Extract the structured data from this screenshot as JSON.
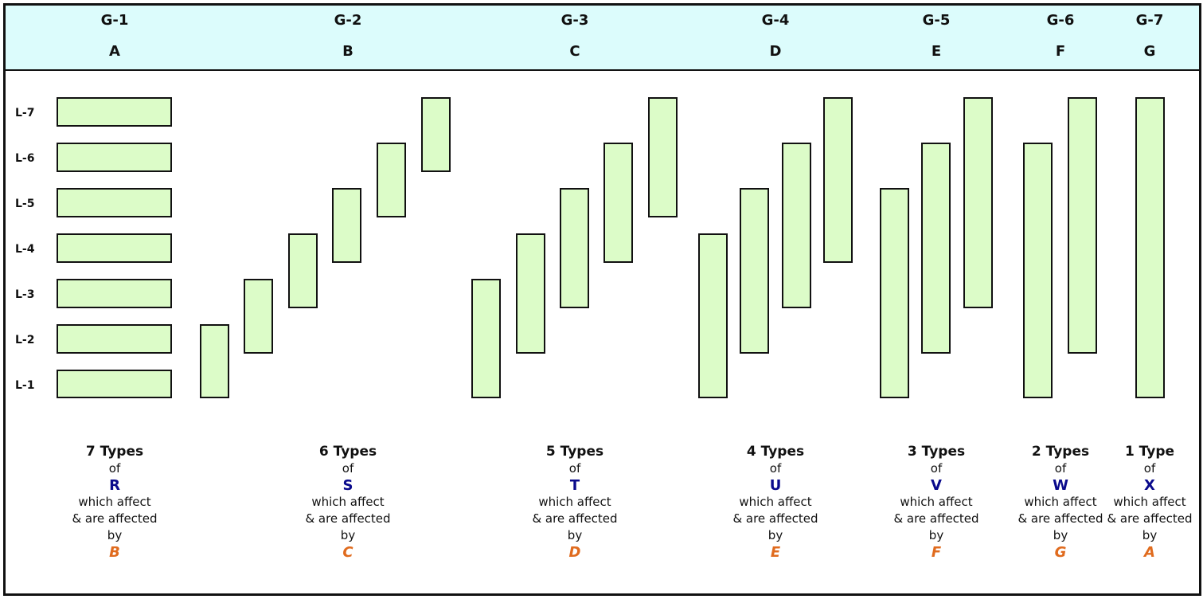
{
  "colors": {
    "header_bg": "#dcfcfc",
    "block_fill": "#dcfcc8",
    "border": "#111111",
    "target_color": "#0a0a8c",
    "source_color": "#e06b1e"
  },
  "groups": [
    {
      "id": "G-1",
      "letter": "A",
      "count_label": "7 Types",
      "of": "of",
      "target": "R",
      "affect": "which affect",
      "affected": "& are affected",
      "by": "by",
      "source": "B"
    },
    {
      "id": "G-2",
      "letter": "B",
      "count_label": "6 Types",
      "of": "of",
      "target": "S",
      "affect": "which affect",
      "affected": "& are affected",
      "by": "by",
      "source": "C"
    },
    {
      "id": "G-3",
      "letter": "C",
      "count_label": "5 Types",
      "of": "of",
      "target": "T",
      "affect": "which affect",
      "affected": "& are affected",
      "by": "by",
      "source": "D"
    },
    {
      "id": "G-4",
      "letter": "D",
      "count_label": "4 Types",
      "of": "of",
      "target": "U",
      "affect": "which affect",
      "affected": "& are affected",
      "by": "by",
      "source": "E"
    },
    {
      "id": "G-5",
      "letter": "E",
      "count_label": "3 Types",
      "of": "of",
      "target": "V",
      "affect": "which affect",
      "affected": "& are affected",
      "by": "by",
      "source": "F"
    },
    {
      "id": "G-6",
      "letter": "F",
      "count_label": "2 Types",
      "of": "of",
      "target": "W",
      "affect": "which affect",
      "affected": "& are affected",
      "by": "by",
      "source": "G"
    },
    {
      "id": "G-7",
      "letter": "G",
      "count_label": "1 Type",
      "of": "of",
      "target": "X",
      "affect": "which affect",
      "affected": "& are affected",
      "by": "by",
      "source": "A"
    }
  ],
  "levels": [
    "L-7",
    "L-6",
    "L-5",
    "L-4",
    "L-3",
    "L-2",
    "L-1"
  ],
  "spans": [
    [
      [
        1,
        1
      ],
      [
        2,
        2
      ],
      [
        3,
        3
      ],
      [
        4,
        4
      ],
      [
        5,
        5
      ],
      [
        6,
        6
      ],
      [
        7,
        7
      ]
    ],
    [
      [
        1,
        2
      ],
      [
        2,
        3
      ],
      [
        3,
        4
      ],
      [
        4,
        5
      ],
      [
        5,
        6
      ],
      [
        6,
        7
      ]
    ],
    [
      [
        1,
        3
      ],
      [
        2,
        4
      ],
      [
        3,
        5
      ],
      [
        4,
        6
      ],
      [
        5,
        7
      ]
    ],
    [
      [
        1,
        4
      ],
      [
        2,
        5
      ],
      [
        3,
        6
      ],
      [
        4,
        7
      ]
    ],
    [
      [
        1,
        5
      ],
      [
        2,
        6
      ],
      [
        3,
        7
      ]
    ],
    [
      [
        1,
        6
      ],
      [
        2,
        7
      ]
    ],
    [
      [
        1,
        7
      ]
    ]
  ]
}
